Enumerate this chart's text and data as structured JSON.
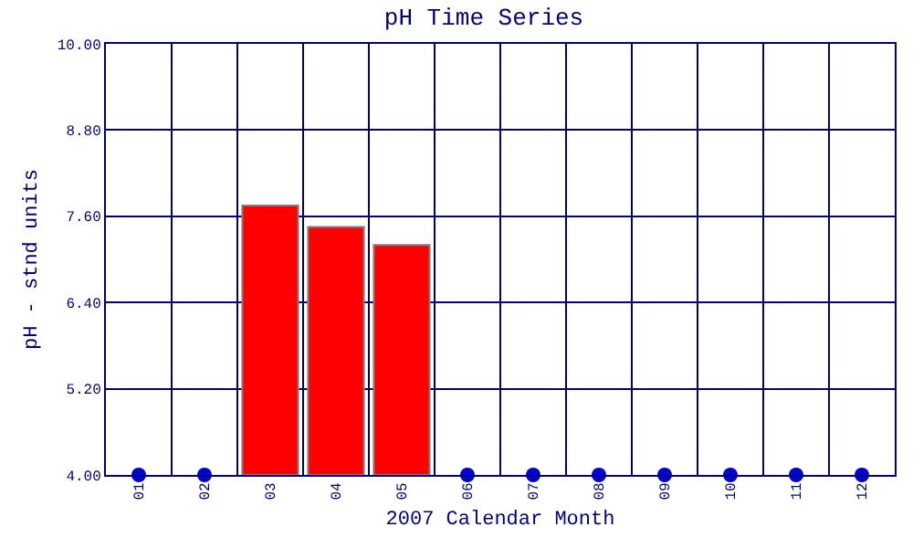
{
  "chart_data": {
    "type": "bar",
    "title": "pH Time Series",
    "xlabel": "2007 Calendar Month",
    "ylabel": "pH - stnd units",
    "categories": [
      "01",
      "02",
      "03",
      "04",
      "05",
      "06",
      "07",
      "08",
      "09",
      "10",
      "11",
      "12"
    ],
    "series": [
      {
        "color": "#ff0000",
        "values": [
          null,
          null,
          7.75,
          7.45,
          7.2,
          null,
          null,
          null,
          null,
          null,
          null,
          null
        ]
      },
      {
        "type": "scatter",
        "color": "#0000cc",
        "values": [
          4,
          4,
          null,
          null,
          null,
          4,
          4,
          4,
          4,
          4,
          4,
          4
        ]
      }
    ],
    "ylim": [
      4,
      10
    ],
    "yticks": [
      {
        "value": 4,
        "label": "4.00"
      },
      {
        "value": 5.2,
        "label": "5.20"
      },
      {
        "value": 6.4,
        "label": "6.40"
      },
      {
        "value": 7.6,
        "label": "7.60"
      },
      {
        "value": 8.8,
        "label": "8.80"
      },
      {
        "value": 10,
        "label": "10.00"
      }
    ],
    "grid": true,
    "legend": false,
    "marker": "circle"
  }
}
